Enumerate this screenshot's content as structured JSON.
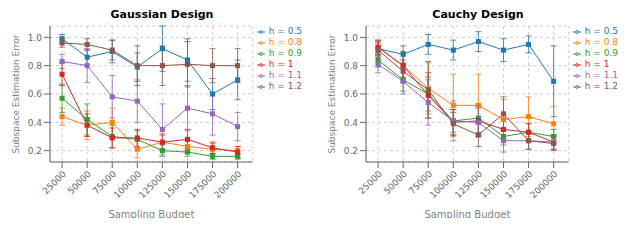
{
  "chart_data": [
    {
      "type": "line",
      "title": "Gaussian Design",
      "xlabel": "Sampling Budget",
      "ylabel": "Subspace Estimation Error",
      "x": [
        25000,
        50000,
        75000,
        100000,
        125000,
        150000,
        175000,
        200000
      ],
      "xlim": [
        13000,
        215000
      ],
      "xticks": [
        25000,
        50000,
        75000,
        100000,
        125000,
        150000,
        175000,
        200000
      ],
      "ylim": [
        0.12,
        1.08
      ],
      "yticks": [
        0.2,
        0.4,
        0.6,
        0.8,
        {
          "value": 1.0,
          "label": "1.0"
        }
      ],
      "grid": true,
      "legend": "upper right",
      "marker": "square",
      "series": [
        {
          "name": "h = 0.5",
          "color": "#1f77b4",
          "values": [
            0.99,
            0.86,
            0.9,
            0.79,
            0.92,
            0.84,
            0.6,
            0.7
          ],
          "errors": [
            0.03,
            0.05,
            0.08,
            0.1,
            0.16,
            0.15,
            0.11,
            0.14
          ]
        },
        {
          "name": "h = 0.8",
          "color": "#ff7f0e",
          "values": [
            0.44,
            0.38,
            0.4,
            0.21,
            0.26,
            0.23,
            0.21,
            0.2
          ],
          "errors": [
            0.06,
            0.1,
            0.1,
            0.06,
            0.06,
            0.04,
            0.04,
            0.03
          ]
        },
        {
          "name": "h = 0.9",
          "color": "#2ca02c",
          "values": [
            0.57,
            0.42,
            0.3,
            0.28,
            0.2,
            0.19,
            0.16,
            0.16
          ],
          "errors": [
            0.1,
            0.11,
            0.08,
            0.06,
            0.04,
            0.03,
            0.02,
            0.02
          ]
        },
        {
          "name": "h = 1",
          "color": "#d62728",
          "values": [
            0.74,
            0.38,
            0.29,
            0.29,
            0.26,
            0.28,
            0.22,
            0.19
          ],
          "errors": [
            0.08,
            0.08,
            0.07,
            0.06,
            0.05,
            0.07,
            0.04,
            0.04
          ]
        },
        {
          "name": "h = 1.1",
          "color": "#9467bd",
          "values": [
            0.83,
            0.8,
            0.58,
            0.55,
            0.35,
            0.5,
            0.46,
            0.37
          ],
          "errors": [
            0.05,
            0.12,
            0.15,
            0.15,
            0.18,
            0.16,
            0.15,
            0.1
          ]
        },
        {
          "name": "h = 1.2",
          "color": "#8c564b",
          "values": [
            0.96,
            0.95,
            0.91,
            0.8,
            0.8,
            0.81,
            0.8,
            0.8
          ],
          "errors": [
            0.03,
            0.04,
            0.07,
            0.14,
            0.14,
            0.16,
            0.12,
            0.12
          ]
        }
      ]
    },
    {
      "type": "line",
      "title": "Cauchy Design",
      "xlabel": "Sampling Budget",
      "ylabel": "Subspace Estimation Error",
      "x": [
        25000,
        50000,
        75000,
        100000,
        125000,
        150000,
        175000,
        200000
      ],
      "xlim": [
        13000,
        215000
      ],
      "xticks": [
        25000,
        50000,
        75000,
        100000,
        125000,
        150000,
        175000,
        200000
      ],
      "ylim": [
        0.12,
        1.08
      ],
      "yticks": [
        0.2,
        0.4,
        0.6,
        0.8,
        {
          "value": 1.0,
          "label": "1.0"
        }
      ],
      "grid": true,
      "legend": "upper right",
      "marker": "square",
      "series": [
        {
          "name": "h = 0.5",
          "color": "#1f77b4",
          "values": [
            0.92,
            0.88,
            0.95,
            0.91,
            0.97,
            0.91,
            0.95,
            0.69
          ],
          "errors": [
            0.05,
            0.06,
            0.07,
            0.07,
            0.07,
            0.08,
            0.06,
            0.25
          ]
        },
        {
          "name": "h = 0.8",
          "color": "#ff7f0e",
          "values": [
            0.93,
            0.8,
            0.64,
            0.52,
            0.52,
            0.42,
            0.44,
            0.39
          ],
          "errors": [
            0.05,
            0.08,
            0.18,
            0.22,
            0.22,
            0.14,
            0.14,
            0.12
          ]
        },
        {
          "name": "h = 0.9",
          "color": "#2ca02c",
          "values": [
            0.84,
            0.7,
            0.6,
            0.41,
            0.43,
            0.3,
            0.33,
            0.3
          ],
          "errors": [
            0.05,
            0.08,
            0.12,
            0.08,
            0.1,
            0.06,
            0.06,
            0.05
          ]
        },
        {
          "name": "h = 1",
          "color": "#d62728",
          "values": [
            0.93,
            0.8,
            0.59,
            0.4,
            0.41,
            0.35,
            0.33,
            0.26
          ],
          "errors": [
            0.05,
            0.1,
            0.16,
            0.09,
            0.1,
            0.07,
            0.06,
            0.05
          ]
        },
        {
          "name": "h = 1.1",
          "color": "#9467bd",
          "values": [
            0.81,
            0.69,
            0.54,
            0.41,
            0.4,
            0.27,
            0.27,
            0.26
          ],
          "errors": [
            0.06,
            0.09,
            0.16,
            0.14,
            0.1,
            0.08,
            0.06,
            0.05
          ]
        },
        {
          "name": "h = 1.2",
          "color": "#8c564b",
          "values": [
            0.91,
            0.76,
            0.63,
            0.39,
            0.31,
            0.46,
            0.27,
            0.25
          ],
          "errors": [
            0.05,
            0.08,
            0.2,
            0.08,
            0.08,
            0.12,
            0.06,
            0.05
          ]
        }
      ]
    }
  ]
}
